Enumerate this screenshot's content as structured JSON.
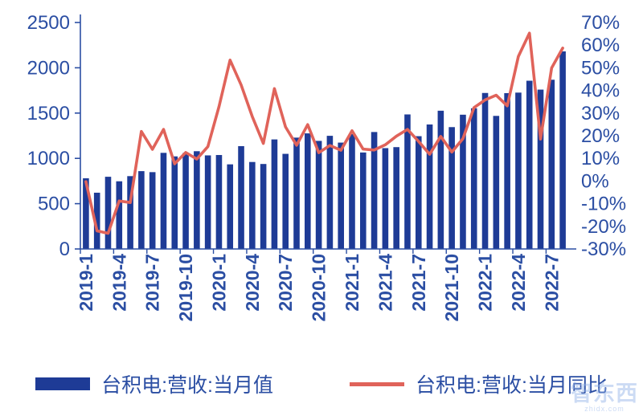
{
  "colors": {
    "bar": "#1e3b96",
    "line": "#e0635a",
    "axis_text": "#2b4ea3",
    "axis_line": "#2b4ea3",
    "watermark": "#8fb0e8"
  },
  "chart_data": {
    "type": "bar+line",
    "title": "",
    "months": [
      "2019-1",
      "2019-2",
      "2019-3",
      "2019-4",
      "2019-5",
      "2019-6",
      "2019-7",
      "2019-8",
      "2019-9",
      "2019-10",
      "2019-11",
      "2019-12",
      "2020-1",
      "2020-2",
      "2020-3",
      "2020-4",
      "2020-5",
      "2020-6",
      "2020-7",
      "2020-8",
      "2020-9",
      "2020-10",
      "2020-11",
      "2020-12",
      "2021-1",
      "2021-2",
      "2021-3",
      "2021-4",
      "2021-5",
      "2021-6",
      "2021-7",
      "2021-8",
      "2021-9",
      "2021-10",
      "2021-11",
      "2021-12",
      "2022-1",
      "2022-2",
      "2022-3",
      "2022-4",
      "2022-5",
      "2022-6",
      "2022-7",
      "2022-8"
    ],
    "x_label_every": 3,
    "series": [
      {
        "name": "台积电:营收:当月值",
        "type": "bar",
        "axis": "left",
        "values": [
          780,
          621,
          797,
          747,
          804,
          859,
          848,
          1061,
          1022,
          1060,
          1079,
          1033,
          1037,
          934,
          1135,
          960,
          938,
          1209,
          1050,
          1229,
          1276,
          1193,
          1249,
          1174,
          1268,
          1065,
          1291,
          1113,
          1124,
          1485,
          1245,
          1374,
          1526,
          1345,
          1482,
          1553,
          1722,
          1469,
          1720,
          1726,
          1857,
          1759,
          1868,
          2181
        ]
      },
      {
        "name": "台积电:营收:当月同比",
        "type": "line",
        "axis": "right",
        "values": [
          -0.3,
          -22.0,
          -23.1,
          -8.8,
          -9.5,
          21.9,
          14.0,
          22.8,
          7.6,
          12.6,
          9.7,
          15.2,
          32.8,
          53.4,
          42.4,
          28.5,
          16.6,
          40.8,
          23.9,
          15.8,
          24.9,
          12.5,
          15.7,
          13.6,
          22.2,
          14.1,
          13.7,
          16.0,
          19.8,
          22.8,
          17.5,
          11.8,
          19.7,
          12.8,
          18.7,
          32.4,
          35.8,
          37.9,
          33.2,
          55.0,
          65.3,
          18.5,
          49.9,
          58.7
        ]
      }
    ],
    "left_axis": {
      "min": 0,
      "max": 2500,
      "ticks": [
        0,
        500,
        1000,
        1500,
        2000,
        2500
      ]
    },
    "right_axis": {
      "min": -30,
      "max": 70,
      "ticks": [
        -30,
        -20,
        -10,
        0,
        10,
        20,
        30,
        40,
        50,
        60,
        70
      ],
      "suffix": "%"
    },
    "grid": "off",
    "legend_position": "bottom"
  },
  "legend": {
    "bar_label": "台积电:营收:当月值",
    "line_label": "台积电:营收:当月同比"
  },
  "watermark": {
    "big": "智东西",
    "small": "zhidx.com"
  }
}
